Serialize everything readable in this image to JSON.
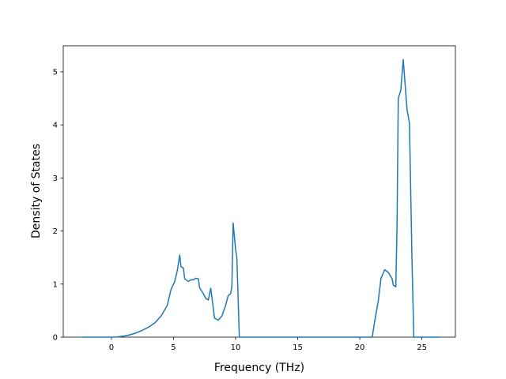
{
  "chart_data": {
    "type": "line",
    "x_label": "Frequency (THz)",
    "y_label": "Density of States",
    "x": [
      -2.4,
      0,
      0.5,
      1,
      1.5,
      2,
      2.5,
      3,
      3.5,
      4,
      4.5,
      4.8,
      5.1,
      5.3,
      5.5,
      5.6,
      5.8,
      5.9,
      6.2,
      6.4,
      6.6,
      6.8,
      7.0,
      7.1,
      7.4,
      7.6,
      7.8,
      8.0,
      8.2,
      8.3,
      8.6,
      8.9,
      9.2,
      9.4,
      9.6,
      9.7,
      9.8,
      10.0,
      10.1,
      10.3,
      15,
      21.0,
      21.2,
      21.5,
      21.7,
      22.0,
      22.3,
      22.6,
      22.7,
      22.9,
      23.0,
      23.1,
      23.3,
      23.5,
      23.8,
      24.0,
      24.2,
      24.35,
      26.4
    ],
    "series": [
      {
        "color": "#1f77b4",
        "values": [
          0,
          0,
          0.005,
          0.02,
          0.045,
          0.08,
          0.13,
          0.19,
          0.27,
          0.4,
          0.6,
          0.9,
          1.05,
          1.25,
          1.55,
          1.33,
          1.3,
          1.1,
          1.05,
          1.08,
          1.08,
          1.11,
          1.1,
          0.93,
          0.82,
          0.73,
          0.7,
          0.92,
          0.55,
          0.36,
          0.32,
          0.4,
          0.6,
          0.78,
          0.82,
          0.95,
          2.15,
          1.65,
          1.5,
          0,
          0,
          0,
          0.3,
          0.7,
          1.1,
          1.27,
          1.22,
          1.1,
          0.98,
          0.95,
          2.1,
          4.5,
          4.65,
          5.23,
          4.3,
          4.03,
          1.5,
          0,
          0
        ]
      }
    ],
    "xlim": [
      -3.88,
      27.7
    ],
    "ylim": [
      0,
      5.49
    ],
    "xticks": [
      0,
      5,
      10,
      15,
      20,
      25
    ],
    "yticks": [
      0,
      1,
      2,
      3,
      4,
      5
    ]
  }
}
